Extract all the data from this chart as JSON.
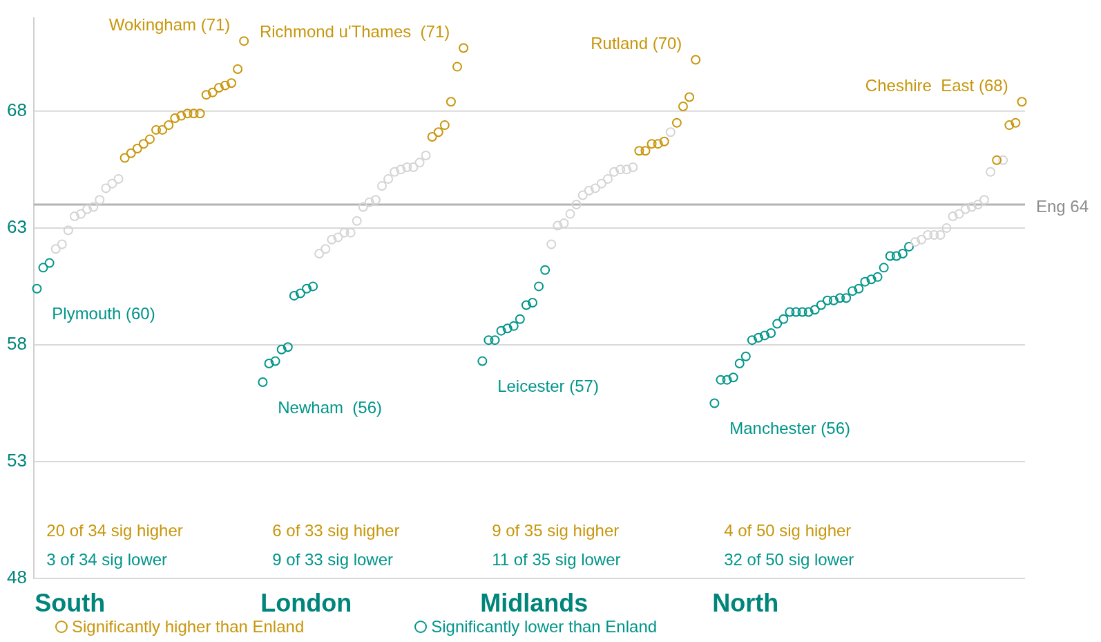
{
  "chart_data": {
    "type": "scatter",
    "categories": [
      null,
      null,
      null,
      null,
      null,
      null,
      null,
      null,
      null,
      null,
      null,
      null,
      null,
      null,
      null,
      null,
      null,
      null,
      null,
      null,
      null,
      null,
      null,
      null,
      null,
      null,
      null,
      null,
      null,
      null,
      null,
      null,
      null,
      null,
      null,
      null,
      null,
      null,
      null,
      null,
      null,
      null,
      null,
      null,
      null,
      null,
      null,
      null,
      null,
      null,
      null,
      null,
      null,
      null,
      null,
      null,
      null,
      null,
      null,
      null,
      null,
      null,
      null,
      null,
      null,
      null,
      null,
      null,
      null,
      null,
      null,
      null,
      null,
      null,
      null,
      null,
      null,
      null,
      null,
      null,
      null,
      null,
      null,
      null,
      null,
      null,
      null,
      null,
      null,
      null,
      null,
      null,
      null,
      null,
      null,
      null,
      null,
      null,
      null,
      null,
      null,
      null,
      null,
      null,
      null,
      null,
      null,
      null,
      null,
      null,
      null,
      null,
      null,
      null,
      null,
      null,
      null,
      null,
      null,
      null,
      null,
      null,
      null,
      null,
      null,
      null,
      null,
      null,
      null,
      null,
      null,
      null,
      null,
      null,
      null,
      null,
      null,
      null,
      null,
      null,
      null,
      null,
      null,
      null,
      null,
      null,
      null,
      null,
      null,
      null,
      null,
      null,
      null,
      null,
      null,
      null,
      null,
      null
    ],
    "series": [
      {
        "name": "Significantly higher than Enland",
        "color": "#c8960c",
        "values": [
          null,
          null,
          null,
          null,
          null,
          null,
          null,
          null,
          null,
          null,
          null,
          null,
          null,
          null,
          66.0,
          66.2,
          66.4,
          66.6,
          66.8,
          67.2,
          67.2,
          67.4,
          67.7,
          67.8,
          67.9,
          67.9,
          67.9,
          68.7,
          68.8,
          69.0,
          69.1,
          69.2,
          69.8,
          71.0,
          null,
          null,
          null,
          null,
          null,
          null,
          null,
          null,
          null,
          null,
          null,
          null,
          null,
          null,
          null,
          null,
          null,
          null,
          null,
          null,
          null,
          null,
          null,
          null,
          null,
          null,
          null,
          null,
          null,
          66.9,
          67.1,
          67.4,
          68.4,
          69.9,
          70.7,
          null,
          null,
          null,
          null,
          null,
          null,
          null,
          null,
          null,
          null,
          null,
          null,
          null,
          null,
          null,
          null,
          null,
          null,
          null,
          null,
          null,
          null,
          null,
          null,
          null,
          null,
          null,
          66.3,
          66.3,
          66.6,
          66.6,
          66.7,
          null,
          67.5,
          68.2,
          68.6,
          70.2,
          null,
          null,
          null,
          null,
          null,
          null,
          null,
          null,
          null,
          null,
          null,
          null,
          null,
          null,
          null,
          null,
          null,
          null,
          null,
          null,
          null,
          null,
          null,
          null,
          null,
          null,
          null,
          null,
          null,
          null,
          null,
          null,
          null,
          null,
          null,
          null,
          null,
          null,
          null,
          null,
          null,
          null,
          null,
          null,
          null,
          null,
          null,
          65.9,
          null,
          67.4,
          67.5,
          68.4
        ]
      },
      {
        "color": "#d4d4d4",
        "values": [
          null,
          null,
          null,
          62.1,
          62.3,
          62.9,
          63.5,
          63.6,
          63.8,
          63.9,
          64.2,
          64.7,
          64.9,
          65.1,
          null,
          null,
          null,
          null,
          null,
          null,
          null,
          null,
          null,
          null,
          null,
          null,
          null,
          null,
          null,
          null,
          null,
          null,
          null,
          null,
          null,
          null,
          null,
          null,
          null,
          null,
          null,
          null,
          null,
          null,
          null,
          61.9,
          62.1,
          62.5,
          62.6,
          62.8,
          62.8,
          63.3,
          63.9,
          64.1,
          64.2,
          64.8,
          65.1,
          65.4,
          65.5,
          65.6,
          65.6,
          65.8,
          66.1,
          null,
          null,
          null,
          null,
          null,
          null,
          null,
          null,
          null,
          null,
          null,
          null,
          null,
          null,
          null,
          null,
          null,
          null,
          null,
          62.3,
          63.1,
          63.2,
          63.6,
          64.0,
          64.4,
          64.6,
          64.7,
          64.9,
          65.1,
          65.4,
          65.5,
          65.5,
          65.6,
          null,
          null,
          null,
          null,
          null,
          67.1,
          null,
          null,
          null,
          null,
          null,
          null,
          null,
          null,
          null,
          null,
          null,
          null,
          null,
          null,
          null,
          null,
          null,
          null,
          null,
          null,
          null,
          null,
          null,
          null,
          null,
          null,
          null,
          null,
          null,
          null,
          null,
          null,
          null,
          null,
          null,
          null,
          null,
          null,
          62.4,
          62.5,
          62.7,
          62.7,
          62.7,
          63.0,
          63.5,
          63.6,
          63.8,
          63.9,
          64.0,
          64.2,
          65.4,
          null,
          65.9,
          null,
          null,
          null
        ]
      },
      {
        "name": "Significantly lower than Enland",
        "color": "#00958a",
        "values": [
          60.4,
          61.3,
          61.5,
          null,
          null,
          null,
          null,
          null,
          null,
          null,
          null,
          null,
          null,
          null,
          null,
          null,
          null,
          null,
          null,
          null,
          null,
          null,
          null,
          null,
          null,
          null,
          null,
          null,
          null,
          null,
          null,
          null,
          null,
          null,
          null,
          null,
          56.4,
          57.2,
          57.3,
          57.8,
          57.9,
          60.1,
          60.2,
          60.4,
          60.5,
          null,
          null,
          null,
          null,
          null,
          null,
          null,
          null,
          null,
          null,
          null,
          null,
          null,
          null,
          null,
          null,
          null,
          null,
          null,
          null,
          null,
          null,
          null,
          null,
          null,
          null,
          57.3,
          58.2,
          58.2,
          58.6,
          58.7,
          58.8,
          59.1,
          59.7,
          59.8,
          60.5,
          61.2,
          null,
          null,
          null,
          null,
          null,
          null,
          null,
          null,
          null,
          null,
          null,
          null,
          null,
          null,
          null,
          null,
          null,
          null,
          null,
          null,
          null,
          null,
          null,
          null,
          null,
          null,
          55.5,
          56.5,
          56.5,
          56.6,
          57.2,
          57.5,
          58.2,
          58.3,
          58.4,
          58.5,
          58.9,
          59.1,
          59.4,
          59.4,
          59.4,
          59.4,
          59.5,
          59.7,
          59.9,
          59.9,
          60.0,
          60.0,
          60.3,
          60.4,
          60.7,
          60.8,
          60.9,
          61.3,
          61.8,
          61.8,
          61.9,
          62.2,
          null,
          null,
          null,
          null,
          null,
          null,
          null,
          null,
          null,
          null,
          null,
          null,
          null,
          null,
          null,
          null,
          null,
          null
        ]
      }
    ],
    "ylim": [
      48,
      72
    ],
    "yticks": [
      48,
      53,
      58,
      63,
      68
    ],
    "grid": "y",
    "tick_labels": "y",
    "marker": "circle",
    "legend": "bottom",
    "ref_lines": [
      {
        "axis": "y",
        "value": 64,
        "label": "Eng 64",
        "color": "#b3b3b3"
      }
    ],
    "annotations": [
      "Wokingham (71)",
      "Plymouth (60)",
      "20 of 34 sig higher",
      "3 of 34 sig lower",
      "South",
      "Richmond u'Thames  (71)",
      "Newham  (56)",
      "6 of 33 sig higher",
      "9 of 33 sig lower",
      "London",
      "Rutland (70)",
      "Leicester (57)",
      "9 of 35 sig higher",
      "11 of 35 sig lower",
      "Midlands",
      "Cheshire  East (68)",
      "Manchester (56)",
      "4 of 50 sig higher",
      "32 of 50 sig lower",
      "North"
    ]
  }
}
